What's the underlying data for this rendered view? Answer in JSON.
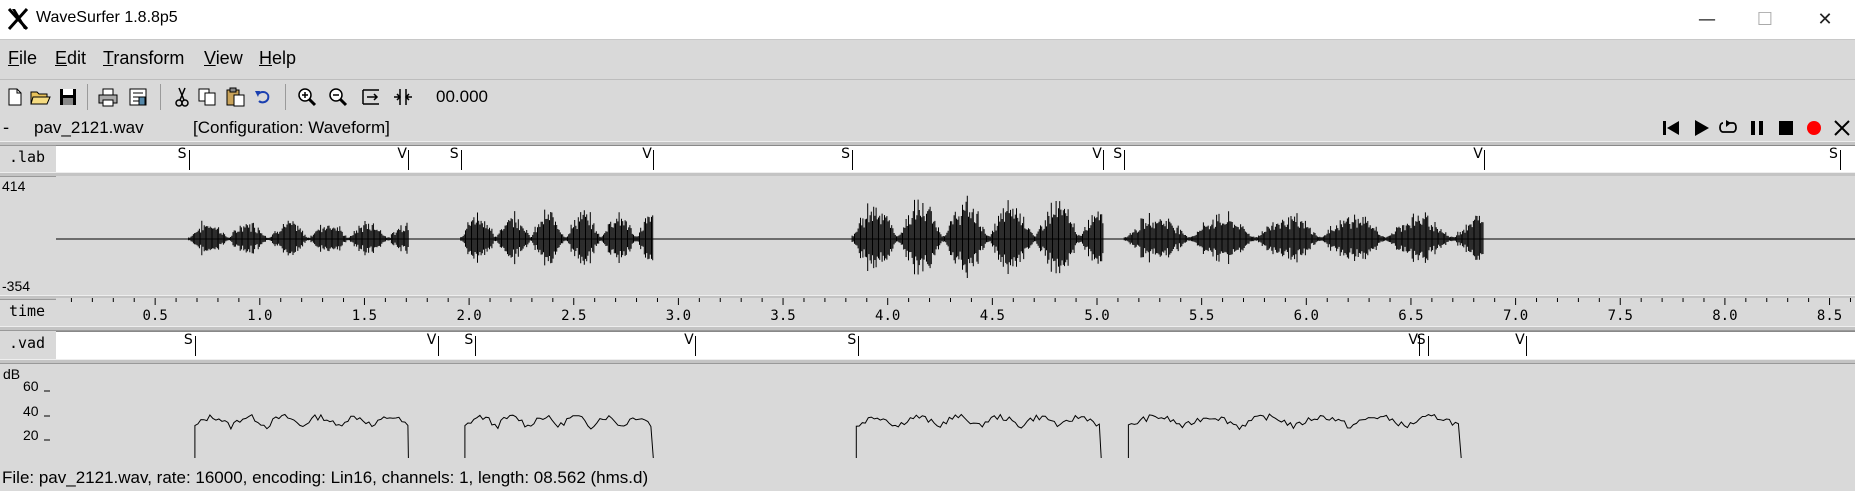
{
  "window": {
    "title": "WaveSurfer 1.8.8p5",
    "min_glyph": "—",
    "max_glyph": "☐",
    "close_glyph": "✕"
  },
  "menu": {
    "items": [
      {
        "label_u": "F",
        "label_rest": "ile"
      },
      {
        "label_u": "E",
        "label_rest": "dit"
      },
      {
        "label_u": "T",
        "label_rest": "ransform"
      },
      {
        "label_u": "V",
        "label_rest": "iew"
      },
      {
        "label_u": "H",
        "label_rest": "elp"
      }
    ]
  },
  "toolbar": {
    "icons": [
      "new-file-icon",
      "open-folder-icon",
      "save-icon",
      "print-icon",
      "properties-icon",
      "cut-icon",
      "copy-icon",
      "paste-icon",
      "undo-icon",
      "zoom-in-icon",
      "zoom-out-icon",
      "zoom-fit-icon",
      "zoom-selection-icon"
    ],
    "time_readout": "00.000"
  },
  "sound": {
    "dash": "-",
    "filename": "pav_2121.wav",
    "configuration": "[Configuration: Waveform]"
  },
  "playback": {
    "icons": [
      "skip-to-start-icon",
      "play-icon",
      "play-loop-icon",
      "pause-icon",
      "stop-icon",
      "record-icon",
      "close-sound-icon"
    ],
    "record_color": "#ff0000"
  },
  "lab_pane": {
    "label": ".lab",
    "segments": [
      {
        "t": 0.66,
        "tag": "S"
      },
      {
        "t": 1.71,
        "tag": "V"
      },
      {
        "t": 1.96,
        "tag": "S"
      },
      {
        "t": 2.88,
        "tag": "V"
      },
      {
        "t": 3.83,
        "tag": "S"
      },
      {
        "t": 5.03,
        "tag": "V"
      },
      {
        "t": 5.13,
        "tag": "S"
      },
      {
        "t": 6.85,
        "tag": "V"
      },
      {
        "t": 8.55,
        "tag": "S"
      }
    ]
  },
  "wave_pane": {
    "max_label": "414",
    "min_label": "-354"
  },
  "time_axis": {
    "label": "time",
    "ticks": [
      "0.5",
      "1.0",
      "1.5",
      "2.0",
      "2.5",
      "3.0",
      "3.5",
      "4.0",
      "4.5",
      "5.0",
      "5.5",
      "6.0",
      "6.5",
      "7.0",
      "7.5",
      "8.0",
      "8.5"
    ]
  },
  "vad_pane": {
    "label": ".vad",
    "segments": [
      {
        "t": 0.69,
        "tag": "S"
      },
      {
        "t": 1.85,
        "tag": "V"
      },
      {
        "t": 2.03,
        "tag": "S"
      },
      {
        "t": 3.08,
        "tag": "V"
      },
      {
        "t": 3.86,
        "tag": "S"
      },
      {
        "t": 6.54,
        "tag": "V"
      },
      {
        "t": 6.58,
        "tag": "S"
      },
      {
        "t": 7.05,
        "tag": "V"
      }
    ]
  },
  "db_pane": {
    "unit": "dB",
    "ticks": [
      "60",
      "40",
      "20"
    ]
  },
  "status": {
    "text": "File: pav_2121.wav, rate: 16000, encoding: Lin16, channels: 1, length: 08.562 (hms.d)"
  }
}
